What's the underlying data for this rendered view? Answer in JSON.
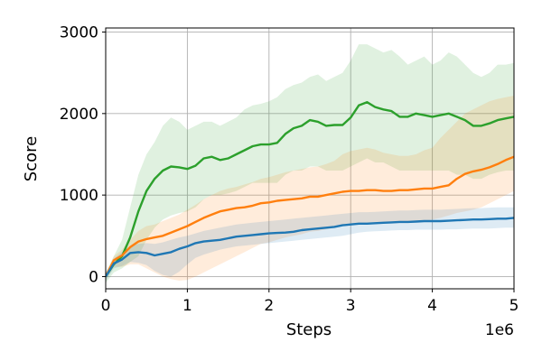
{
  "chart_data": {
    "type": "line",
    "title": "",
    "xlabel": "Steps",
    "ylabel": "Score",
    "x_offset_label": "1e6",
    "xlim": [
      0,
      5000000
    ],
    "ylim": [
      -150,
      3050
    ],
    "xticks": [
      0,
      1000000,
      2000000,
      3000000,
      4000000,
      5000000
    ],
    "xtick_labels": [
      "0",
      "1",
      "2",
      "3",
      "4",
      "5"
    ],
    "yticks": [
      0,
      1000,
      2000,
      3000
    ],
    "ytick_labels": [
      "0",
      "1000",
      "2000",
      "3000"
    ],
    "grid": true,
    "legend": "none",
    "x": [
      0,
      100000,
      200000,
      300000,
      400000,
      500000,
      600000,
      700000,
      800000,
      900000,
      1000000,
      1100000,
      1200000,
      1300000,
      1400000,
      1500000,
      1600000,
      1700000,
      1800000,
      1900000,
      2000000,
      2100000,
      2200000,
      2300000,
      2400000,
      2500000,
      2600000,
      2700000,
      2800000,
      2900000,
      3000000,
      3100000,
      3200000,
      3300000,
      3400000,
      3500000,
      3600000,
      3700000,
      3800000,
      3900000,
      4000000,
      4100000,
      4200000,
      4300000,
      4400000,
      4500000,
      4600000,
      4700000,
      4800000,
      4900000,
      5000000
    ],
    "series": [
      {
        "color": "#2ca02c",
        "band_color": "#2ca02c",
        "values": [
          0,
          150,
          250,
          480,
          800,
          1050,
          1200,
          1300,
          1350,
          1340,
          1320,
          1360,
          1450,
          1470,
          1430,
          1450,
          1500,
          1550,
          1600,
          1620,
          1620,
          1640,
          1750,
          1820,
          1850,
          1920,
          1900,
          1850,
          1860,
          1860,
          1950,
          2100,
          2140,
          2080,
          2050,
          2030,
          1960,
          1960,
          2000,
          1980,
          1960,
          1980,
          2000,
          1960,
          1920,
          1850,
          1850,
          1880,
          1920,
          1940,
          1960
        ],
        "upper": [
          50,
          250,
          450,
          850,
          1250,
          1500,
          1650,
          1850,
          1950,
          1900,
          1800,
          1850,
          1900,
          1900,
          1850,
          1900,
          1950,
          2050,
          2100,
          2120,
          2150,
          2200,
          2300,
          2350,
          2380,
          2450,
          2480,
          2400,
          2450,
          2500,
          2650,
          2850,
          2850,
          2800,
          2750,
          2780,
          2700,
          2600,
          2650,
          2700,
          2600,
          2650,
          2750,
          2700,
          2600,
          2500,
          2450,
          2500,
          2600,
          2600,
          2620
        ],
        "lower": [
          -80,
          50,
          100,
          180,
          250,
          450,
          600,
          700,
          750,
          780,
          800,
          850,
          950,
          1000,
          1000,
          1020,
          1050,
          1100,
          1150,
          1150,
          1150,
          1150,
          1250,
          1300,
          1300,
          1350,
          1350,
          1300,
          1300,
          1300,
          1350,
          1400,
          1450,
          1400,
          1400,
          1350,
          1300,
          1300,
          1300,
          1300,
          1300,
          1300,
          1300,
          1250,
          1250,
          1200,
          1200,
          1250,
          1280,
          1300,
          1300
        ]
      },
      {
        "color": "#ff7f0e",
        "band_color": "#ff7f0e",
        "values": [
          0,
          200,
          260,
          360,
          430,
          460,
          480,
          500,
          540,
          580,
          620,
          670,
          720,
          760,
          800,
          820,
          840,
          850,
          870,
          900,
          910,
          930,
          940,
          950,
          960,
          980,
          980,
          1000,
          1020,
          1040,
          1050,
          1050,
          1060,
          1060,
          1050,
          1050,
          1060,
          1060,
          1070,
          1080,
          1080,
          1100,
          1120,
          1200,
          1260,
          1290,
          1310,
          1340,
          1380,
          1430,
          1470
        ],
        "upper": [
          30,
          250,
          330,
          450,
          560,
          620,
          640,
          680,
          720,
          760,
          820,
          880,
          950,
          1000,
          1050,
          1080,
          1100,
          1130,
          1160,
          1200,
          1220,
          1250,
          1280,
          1300,
          1320,
          1340,
          1350,
          1380,
          1420,
          1500,
          1540,
          1560,
          1580,
          1560,
          1520,
          1500,
          1480,
          1480,
          1500,
          1550,
          1580,
          1700,
          1800,
          1900,
          2000,
          2050,
          2100,
          2150,
          2180,
          2200,
          2220
        ],
        "lower": [
          -40,
          120,
          120,
          150,
          150,
          100,
          50,
          0,
          -30,
          -50,
          -40,
          0,
          50,
          100,
          150,
          200,
          250,
          300,
          350,
          400,
          420,
          450,
          480,
          500,
          520,
          550,
          560,
          580,
          600,
          620,
          650,
          650,
          660,
          660,
          660,
          660,
          670,
          670,
          680,
          680,
          700,
          720,
          750,
          780,
          800,
          820,
          850,
          900,
          950,
          1000,
          1050
        ]
      },
      {
        "color": "#1f77b4",
        "band_color": "#1f77b4",
        "values": [
          0,
          160,
          210,
          290,
          300,
          290,
          260,
          280,
          300,
          340,
          370,
          410,
          430,
          440,
          450,
          470,
          490,
          500,
          510,
          520,
          530,
          535,
          540,
          550,
          570,
          580,
          590,
          600,
          610,
          630,
          640,
          650,
          650,
          655,
          660,
          665,
          670,
          670,
          675,
          680,
          680,
          680,
          685,
          690,
          695,
          700,
          700,
          705,
          710,
          710,
          720
        ],
        "upper": [
          40,
          220,
          300,
          370,
          400,
          410,
          400,
          420,
          450,
          480,
          500,
          530,
          560,
          580,
          600,
          620,
          640,
          650,
          660,
          670,
          680,
          690,
          700,
          710,
          720,
          730,
          740,
          750,
          760,
          770,
          780,
          790,
          790,
          795,
          800,
          805,
          810,
          810,
          815,
          820,
          820,
          820,
          825,
          830,
          835,
          840,
          840,
          845,
          850,
          850,
          850
        ],
        "lower": [
          -60,
          100,
          130,
          180,
          170,
          140,
          70,
          20,
          0,
          60,
          150,
          230,
          270,
          300,
          330,
          350,
          370,
          380,
          390,
          400,
          410,
          420,
          430,
          440,
          450,
          460,
          470,
          480,
          490,
          500,
          520,
          540,
          550,
          555,
          560,
          565,
          570,
          570,
          575,
          575,
          575,
          575,
          580,
          580,
          585,
          590,
          590,
          590,
          595,
          600,
          600
        ]
      }
    ]
  }
}
